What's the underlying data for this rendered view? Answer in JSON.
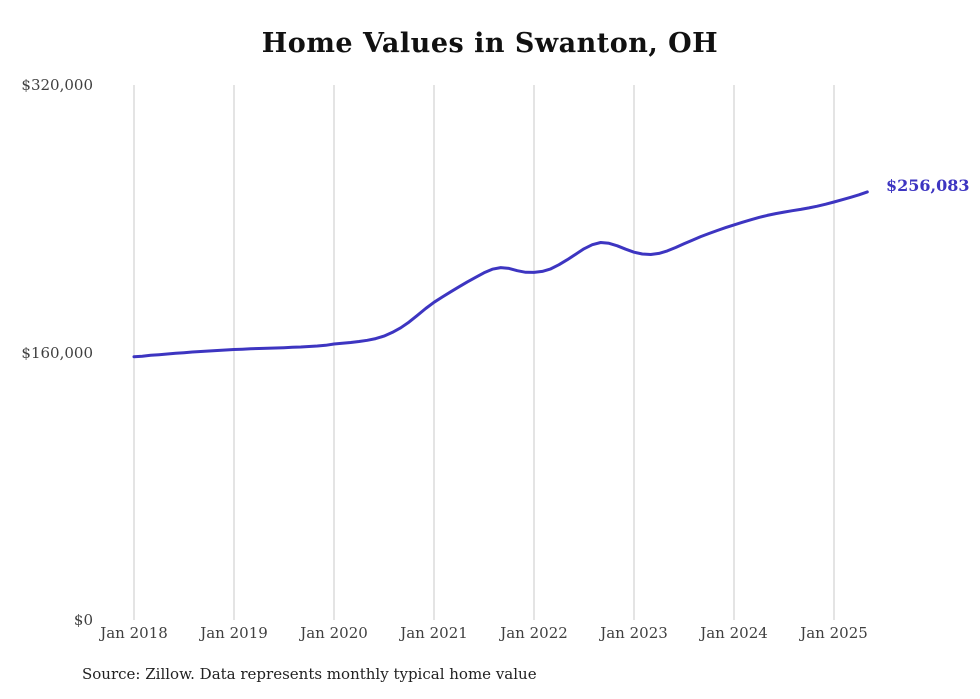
{
  "title": "Home Values in Swanton, OH",
  "source_note": "Source: Zillow. Data represents monthly typical home value",
  "end_value_label": "$256,083",
  "colors": {
    "line": "#3d35c1",
    "end_label": "#3d35c1",
    "grid": "#c9c9c9",
    "title": "#111111",
    "axis_text": "#3f3f3f",
    "background": "#ffffff"
  },
  "y_axis": {
    "ticks": [
      "$0",
      "$160,000",
      "$320,000"
    ],
    "min": 0,
    "max": 320000
  },
  "x_axis": {
    "tick_labels": [
      "Jan 2018",
      "Jan 2019",
      "Jan 2020",
      "Jan 2021",
      "Jan 2022",
      "Jan 2023",
      "Jan 2024",
      "Jan 2025"
    ]
  },
  "chart_data": {
    "type": "line",
    "title": "Home Values in Swanton, OH",
    "xlabel": "",
    "ylabel": "",
    "x_start": "2018-01",
    "x_end": "2025-05",
    "frequency": "monthly",
    "x_tick_labels": [
      "Jan 2018",
      "Jan 2019",
      "Jan 2020",
      "Jan 2021",
      "Jan 2022",
      "Jan 2023",
      "Jan 2024",
      "Jan 2025"
    ],
    "ylim": [
      0,
      320000
    ],
    "y_tick_values": [
      0,
      160000,
      320000
    ],
    "grid": "vertical-only",
    "legend": "none",
    "series": [
      {
        "name": "Typical home value",
        "final_value": 256083,
        "values": [
          157400,
          157800,
          158300,
          158700,
          159100,
          159500,
          159900,
          160300,
          160600,
          160900,
          161200,
          161500,
          161800,
          162000,
          162200,
          162400,
          162500,
          162700,
          162900,
          163100,
          163300,
          163600,
          163900,
          164300,
          165100,
          165500,
          166000,
          166600,
          167300,
          168300,
          169800,
          172000,
          174800,
          178200,
          182200,
          186300,
          190000,
          193200,
          196300,
          199300,
          202200,
          205000,
          207700,
          209800,
          210800,
          210300,
          208900,
          208000,
          207900,
          208500,
          210000,
          212500,
          215500,
          218800,
          222000,
          224500,
          225800,
          225300,
          223800,
          221800,
          220000,
          218900,
          218600,
          219300,
          220800,
          222800,
          225000,
          227200,
          229300,
          231200,
          233000,
          234700,
          236300,
          237900,
          239400,
          240800,
          242000,
          243100,
          244000,
          244800,
          245600,
          246500,
          247500,
          248700,
          250000,
          251400,
          252800,
          254300,
          256083
        ]
      }
    ]
  }
}
